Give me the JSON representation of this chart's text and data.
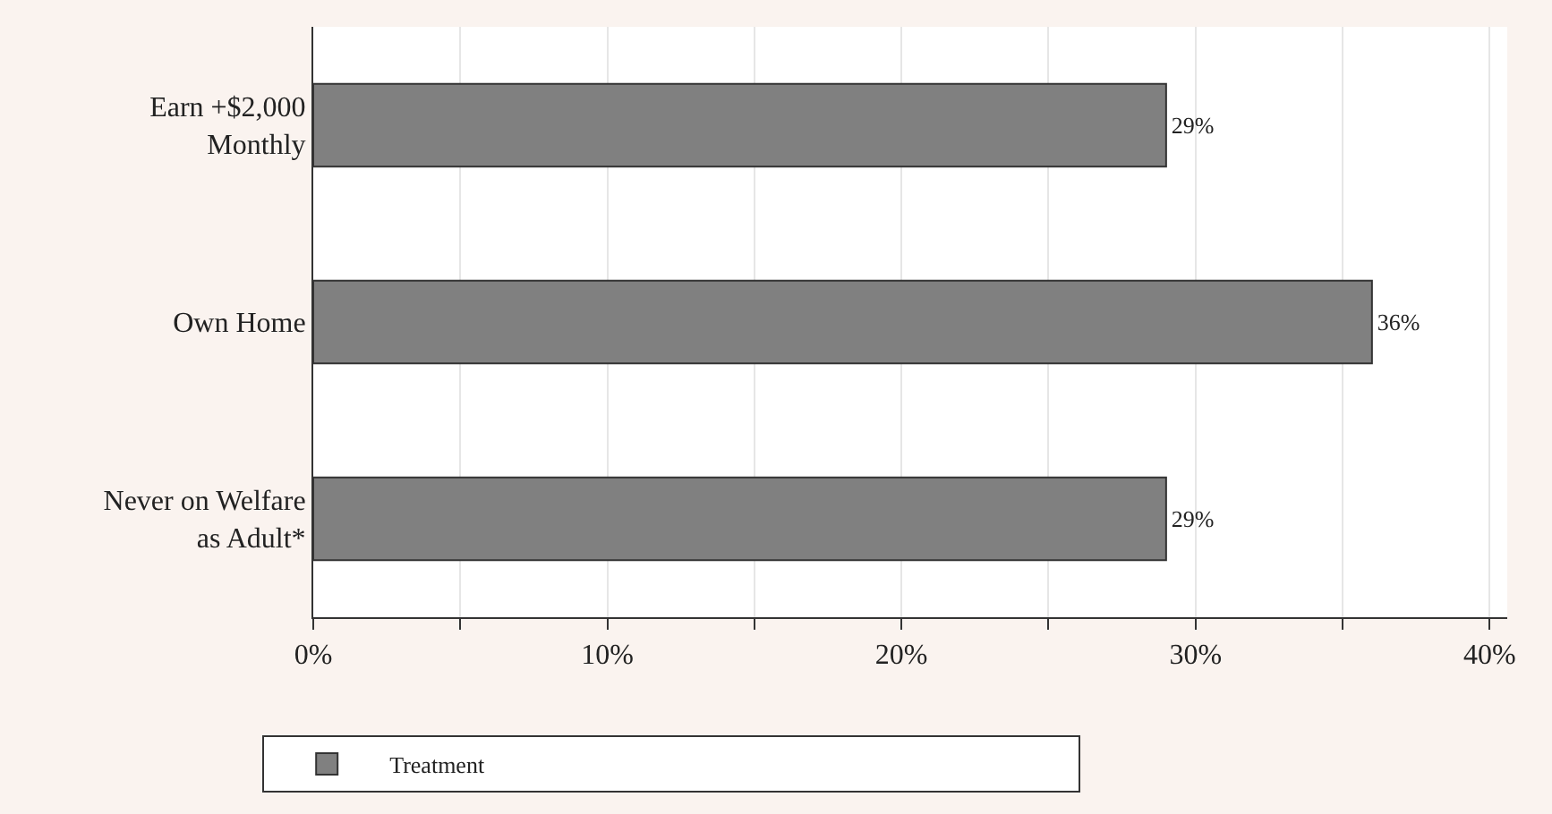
{
  "chart_data": {
    "type": "bar",
    "orientation": "horizontal",
    "categories": [
      "Earn +$2,000\nMonthly",
      "Own Home",
      "Never on Welfare\nas Adult*"
    ],
    "series": [
      {
        "name": "Treatment",
        "color": "#808080",
        "values": [
          29,
          36,
          29
        ],
        "value_labels": [
          "29%",
          "36%",
          "29%"
        ]
      }
    ],
    "xlim": [
      0,
      40.6
    ],
    "xticks": [
      {
        "value": 0,
        "label": "0%"
      },
      {
        "value": 5,
        "label": null
      },
      {
        "value": 10,
        "label": "10%"
      },
      {
        "value": 15,
        "label": null
      },
      {
        "value": 20,
        "label": "20%"
      },
      {
        "value": 25,
        "label": null
      },
      {
        "value": 30,
        "label": "30%"
      },
      {
        "value": 35,
        "label": null
      },
      {
        "value": 40,
        "label": "40%"
      }
    ],
    "grid": "x",
    "legend": "bottom"
  }
}
